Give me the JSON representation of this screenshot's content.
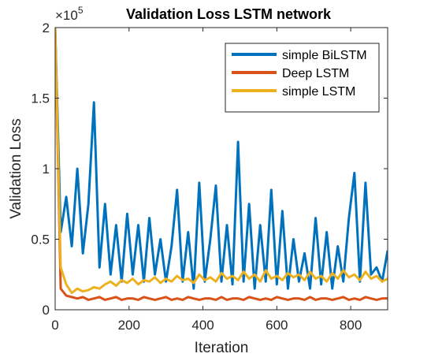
{
  "chart_data": {
    "type": "line",
    "title": "Validation Loss LSTM network",
    "y_multiplier": {
      "base": "×10",
      "exponent": "5"
    },
    "xlabel": "Iteration",
    "ylabel": "Validation Loss",
    "x": [
      0,
      15,
      30,
      45,
      60,
      75,
      90,
      105,
      120,
      135,
      150,
      165,
      180,
      195,
      210,
      225,
      240,
      255,
      270,
      285,
      300,
      315,
      330,
      345,
      360,
      375,
      390,
      405,
      420,
      435,
      450,
      465,
      480,
      495,
      510,
      525,
      540,
      555,
      570,
      585,
      600,
      615,
      630,
      645,
      660,
      675,
      690,
      705,
      720,
      735,
      750,
      765,
      780,
      795,
      810,
      825,
      840,
      855,
      870,
      885,
      900
    ],
    "series": [
      {
        "name": "simple BiLSTM",
        "color": "#0072BD",
        "values": [
          2.0,
          0.55,
          0.8,
          0.45,
          1.0,
          0.4,
          0.75,
          1.47,
          0.3,
          0.75,
          0.25,
          0.6,
          0.2,
          0.68,
          0.25,
          0.6,
          0.2,
          0.65,
          0.25,
          0.5,
          0.2,
          0.45,
          0.85,
          0.2,
          0.55,
          0.15,
          0.9,
          0.2,
          0.5,
          0.88,
          0.2,
          0.6,
          0.18,
          1.19,
          0.2,
          0.75,
          0.15,
          0.6,
          0.2,
          0.85,
          0.18,
          0.7,
          0.15,
          0.5,
          0.2,
          0.4,
          0.15,
          0.65,
          0.18,
          0.55,
          0.15,
          0.45,
          0.2,
          0.65,
          0.97,
          0.2,
          0.9,
          0.25,
          0.3,
          0.2,
          0.42
        ]
      },
      {
        "name": "Deep LSTM",
        "color": "#D95319",
        "values": [
          2.0,
          0.15,
          0.1,
          0.09,
          0.08,
          0.09,
          0.07,
          0.08,
          0.09,
          0.07,
          0.08,
          0.09,
          0.07,
          0.08,
          0.08,
          0.07,
          0.09,
          0.08,
          0.07,
          0.08,
          0.09,
          0.07,
          0.08,
          0.07,
          0.09,
          0.08,
          0.07,
          0.08,
          0.08,
          0.07,
          0.09,
          0.07,
          0.08,
          0.08,
          0.07,
          0.09,
          0.08,
          0.07,
          0.08,
          0.07,
          0.09,
          0.08,
          0.07,
          0.08,
          0.08,
          0.07,
          0.09,
          0.07,
          0.08,
          0.08,
          0.07,
          0.08,
          0.09,
          0.07,
          0.08,
          0.07,
          0.09,
          0.08,
          0.07,
          0.08,
          0.08
        ]
      },
      {
        "name": "simple LSTM",
        "color": "#EDB120",
        "values": [
          2.0,
          0.3,
          0.18,
          0.12,
          0.15,
          0.13,
          0.14,
          0.16,
          0.15,
          0.18,
          0.2,
          0.17,
          0.21,
          0.19,
          0.22,
          0.18,
          0.21,
          0.2,
          0.23,
          0.19,
          0.22,
          0.2,
          0.24,
          0.21,
          0.22,
          0.19,
          0.25,
          0.21,
          0.23,
          0.2,
          0.26,
          0.22,
          0.24,
          0.21,
          0.27,
          0.22,
          0.25,
          0.2,
          0.28,
          0.22,
          0.24,
          0.21,
          0.26,
          0.23,
          0.25,
          0.21,
          0.27,
          0.22,
          0.24,
          0.2,
          0.26,
          0.22,
          0.28,
          0.23,
          0.25,
          0.21,
          0.27,
          0.22,
          0.24,
          0.2,
          0.22
        ]
      }
    ],
    "xlim": [
      0,
      900
    ],
    "xticks": [
      0,
      200,
      400,
      600,
      800
    ],
    "ylim": [
      0,
      2
    ],
    "yticks": [
      0,
      0.5,
      1,
      1.5,
      2
    ],
    "legend": "upper right"
  }
}
